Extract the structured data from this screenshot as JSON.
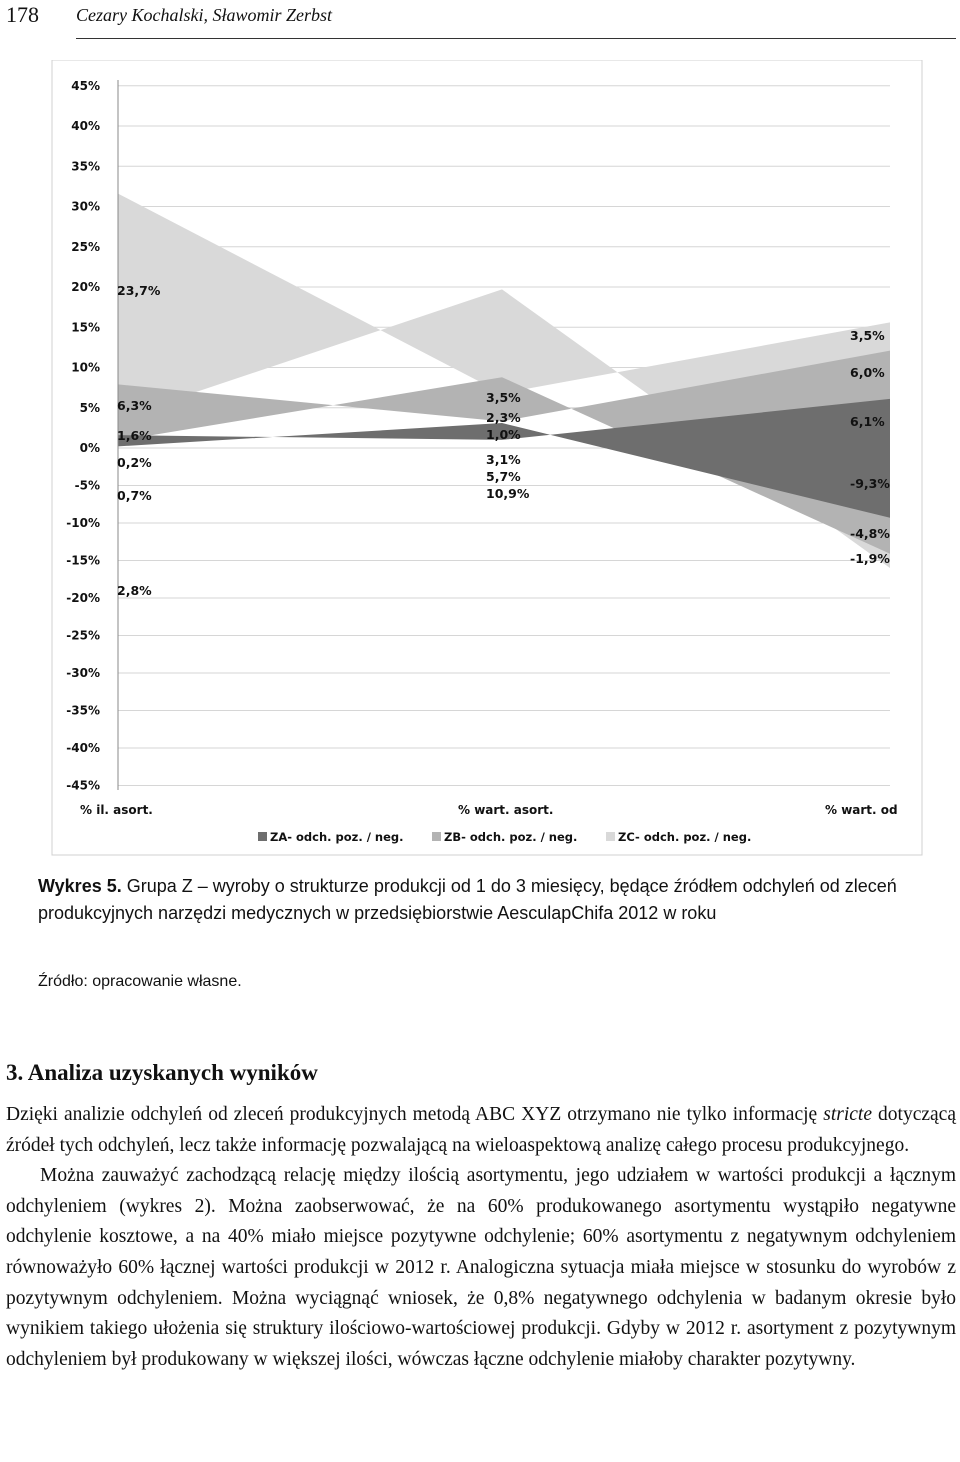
{
  "header": {
    "page_number": "178",
    "authors": "Cezary Kochalski, Sławomir Zerbst"
  },
  "chart_data": {
    "type": "area",
    "categories": [
      "% il. asort.",
      "% wart. asort.",
      "% wart. od"
    ],
    "y_ticks": [
      "45%",
      "40%",
      "35%",
      "30%",
      "25%",
      "20%",
      "15%",
      "10%",
      "5%",
      "0%",
      "-5%",
      "-10%",
      "-15%",
      "-20%",
      "-25%",
      "-30%",
      "-35%",
      "-40%",
      "-45%"
    ],
    "ylim": [
      -45,
      45
    ],
    "grid": true,
    "legend": "bottom",
    "series": [
      {
        "name": "ZA- odch. poz. / neg.",
        "color": "#6e6e6e",
        "positive": [
          1.6,
          1.0,
          6.1
        ],
        "negative": [
          0.2,
          3.1,
          -9.3
        ]
      },
      {
        "name": "ZB- odch. poz. / neg.",
        "color": "#b3b3b3",
        "positive": [
          6.3,
          2.3,
          6.0
        ],
        "negative": [
          0.7,
          5.7,
          -4.8
        ]
      },
      {
        "name": "ZC- odch. poz. / neg.",
        "color": "#d9d9d9",
        "positive": [
          23.7,
          3.5,
          3.5
        ],
        "negative": [
          2.8,
          10.9,
          -1.9
        ]
      }
    ],
    "point_labels": [
      [
        "23,7%",
        "6,3%",
        "1,6%",
        "0,2%",
        "0,7%",
        "2,8%"
      ],
      [
        "3,5%",
        "2,3%",
        "1,0%",
        "3,1%",
        "5,7%",
        "10,9%"
      ],
      [
        "3,5%",
        "6,0%",
        "6,1%",
        "-9,3%",
        "-4,8%",
        "-1,9%"
      ]
    ]
  },
  "caption": {
    "label": "Wykres 5.",
    "text": " Grupa Z – wyroby o strukturze produkcji od 1 do 3 miesięcy, będące źródłem odchyleń od zleceń produkcyjnych narzędzi medycznych w przedsiębiorstwie AesculapChifa 2012 w roku",
    "source": "Źródło: opracowanie własne."
  },
  "section": {
    "title": "3. Analiza uzyskanych wyników"
  },
  "body": {
    "p1_a": "Dzięki analizie odchyleń od zleceń produkcyjnych metodą ABC XYZ otrzymano nie tylko informację ",
    "p1_em": "stricte",
    "p1_b": " dotyczącą źródeł tych odchyleń, lecz także informację pozwalającą na wieloaspektową analizę całego procesu produkcyjnego.",
    "p2": "Można zauważyć zachodzącą relację między ilością asortymentu, jego udziałem w wartości produkcji a łącznym odchyleniem (wykres 2). Można zaobserwować, że na 60% produkowanego asortymentu wystąpiło negatywne odchylenie kosztowe, a na 40% miało miejsce pozytywne odchylenie; 60% asortymentu z negatywnym odchyleniem równoważyło 60% łącznej wartości produkcji w 2012 r. Analogiczna sytuacja miała miejsce w stosunku do wyrobów z pozytywnym odchyleniem. Można wyciągnąć wniosek, że 0,8% negatywnego odchylenia w badanym okresie było wynikiem takiego ułożenia się struktury ilościowo-wartościowej produkcji. Gdyby w 2012 r. asortyment z pozytywnym odchyleniem był produkowany w większej ilości, wówczas łączne odchylenie miałoby charakter pozytywny."
  }
}
